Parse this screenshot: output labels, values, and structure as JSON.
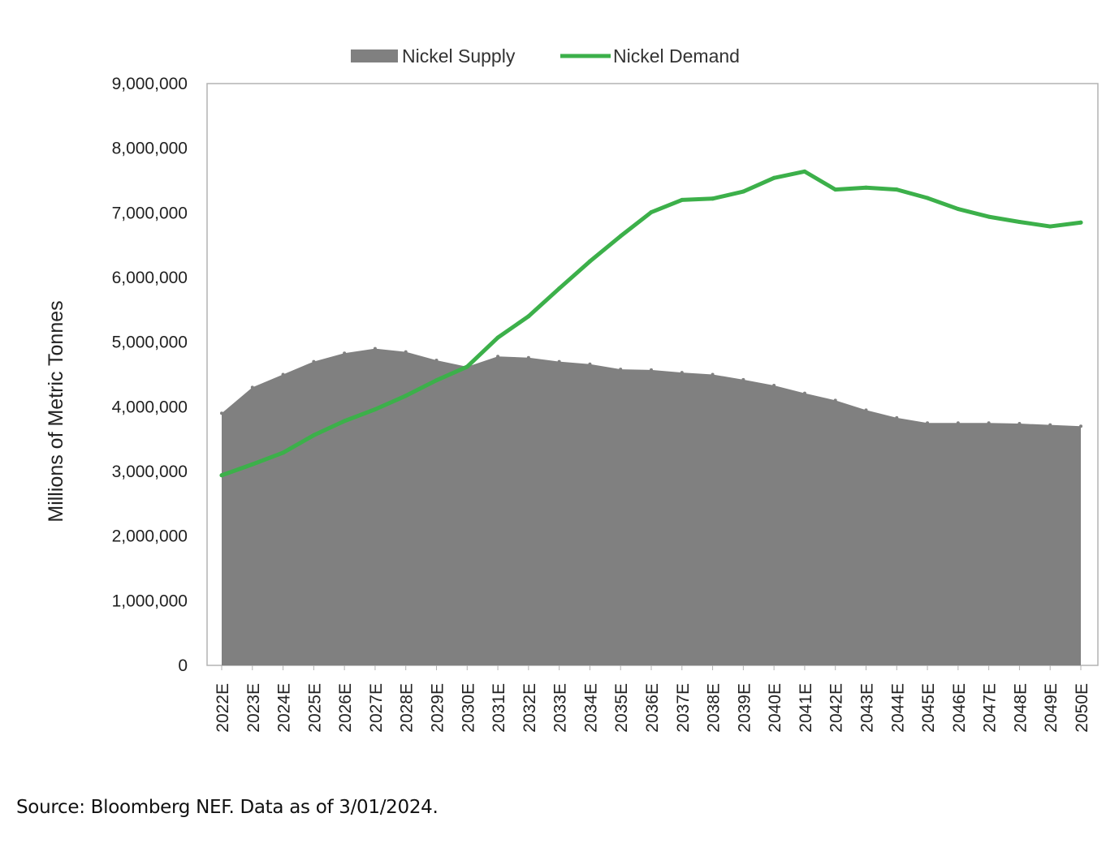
{
  "chart_data": {
    "type": "area",
    "title": "",
    "xlabel": "",
    "ylabel": "Millions of Metric Tonnes",
    "ylim": [
      0,
      9000000
    ],
    "yticks": [
      0,
      1000000,
      2000000,
      3000000,
      4000000,
      5000000,
      6000000,
      7000000,
      8000000,
      9000000
    ],
    "ytick_labels": [
      "0",
      "1,000,000",
      "2,000,000",
      "3,000,000",
      "4,000,000",
      "5,000,000",
      "6,000,000",
      "7,000,000",
      "8,000,000",
      "9,000,000"
    ],
    "legend_position": "top-center",
    "grid": false,
    "categories": [
      "2022E",
      "2023E",
      "2024E",
      "2025E",
      "2026E",
      "2027E",
      "2028E",
      "2029E",
      "2030E",
      "2031E",
      "2032E",
      "2033E",
      "2034E",
      "2035E",
      "2036E",
      "2037E",
      "2038E",
      "2039E",
      "2040E",
      "2041E",
      "2042E",
      "2043E",
      "2044E",
      "2045E",
      "2046E",
      "2047E",
      "2048E",
      "2049E",
      "2050E"
    ],
    "series": [
      {
        "name": "Nickel Supply",
        "kind": "area",
        "color": "#808080",
        "values": [
          3900000,
          4300000,
          4500000,
          4700000,
          4830000,
          4900000,
          4850000,
          4720000,
          4620000,
          4780000,
          4760000,
          4700000,
          4660000,
          4580000,
          4570000,
          4530000,
          4500000,
          4420000,
          4330000,
          4210000,
          4100000,
          3950000,
          3830000,
          3750000,
          3750000,
          3750000,
          3740000,
          3720000,
          3700000
        ]
      },
      {
        "name": "Nickel Demand",
        "kind": "line",
        "color": "#3cb04a",
        "values": [
          2940000,
          3110000,
          3290000,
          3560000,
          3780000,
          3960000,
          4170000,
          4410000,
          4620000,
          5070000,
          5400000,
          5830000,
          6250000,
          6640000,
          7010000,
          7200000,
          7220000,
          7330000,
          7540000,
          7640000,
          7360000,
          7390000,
          7360000,
          7230000,
          7060000,
          6940000,
          6860000,
          6790000,
          6850000
        ]
      }
    ]
  },
  "footer": {
    "source": "Source: Bloomberg NEF. Data as of 3/01/2024."
  }
}
